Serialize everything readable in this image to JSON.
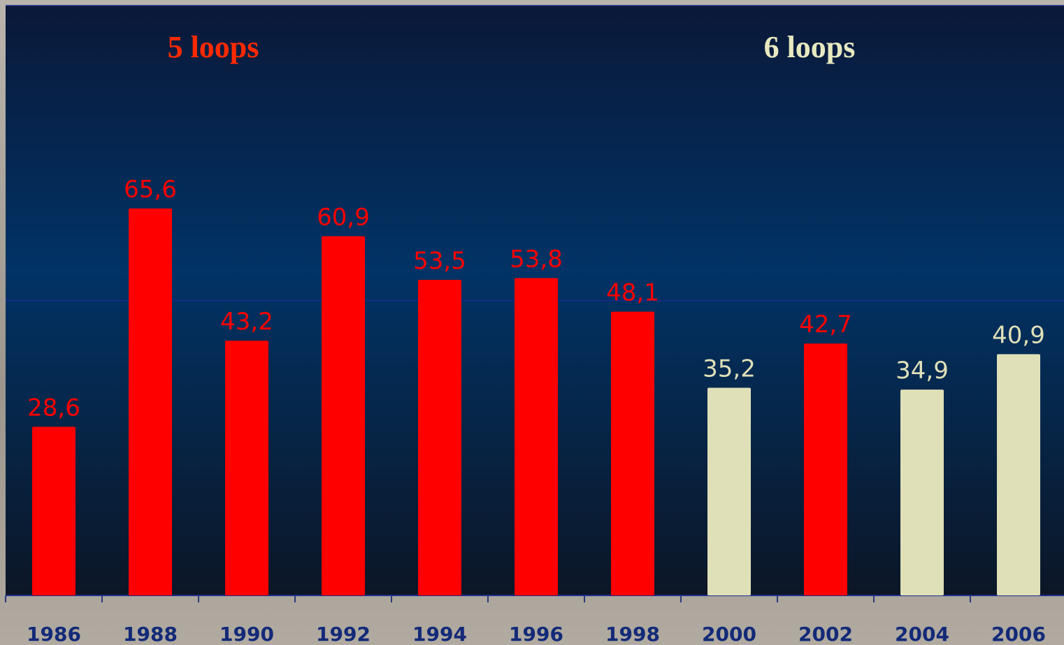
{
  "chart_data": {
    "type": "bar",
    "categories": [
      "1986",
      "1988",
      "1990",
      "1992",
      "1994",
      "1996",
      "1998",
      "2000",
      "2002",
      "2004",
      "2006"
    ],
    "values": [
      28.6,
      65.6,
      43.2,
      60.9,
      53.5,
      53.8,
      48.1,
      35.2,
      42.7,
      34.9,
      40.9
    ],
    "value_labels": [
      "28,6",
      "65,6",
      "43,2",
      "60,9",
      "53,5",
      "53,8",
      "48,1",
      "35,2",
      "42,7",
      "34,9",
      "40,9"
    ],
    "colors": [
      "#ff0000",
      "#ff0000",
      "#ff0000",
      "#ff0000",
      "#ff0000",
      "#ff0000",
      "#ff0000",
      "#e0e0b8",
      "#ff0000",
      "#e0e0b8",
      "#e0e0b8"
    ],
    "annotations": [
      {
        "text": "5 loops",
        "color": "#ff2a00"
      },
      {
        "text": "6 loops",
        "color": "#e8e8c0"
      }
    ],
    "ylim": [
      0,
      100
    ],
    "yticks": [
      0,
      50,
      100
    ],
    "grid": true
  }
}
